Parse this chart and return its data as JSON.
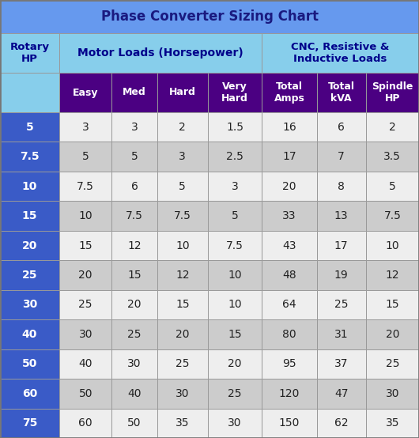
{
  "title": "Phase Converter Sizing Chart",
  "title_bg": "#6699EE",
  "header1_text": "Rotary\nHP",
  "header2_text": "Motor Loads (Horsepower)",
  "header3_text": "CNC, Resistive &\nInductive Loads",
  "header_row2": [
    "Easy",
    "Med",
    "Hard",
    "Very\nHard",
    "Total\nAmps",
    "Total\nkVA",
    "Spindle\nHP"
  ],
  "col_header_bg": "#4B0082",
  "col_header_fg": "#FFFFFF",
  "group_header_bg": "#87CEEB",
  "group_header_fg": "#00008B",
  "row_header_bg": "#3A5BC7",
  "row_header_fg": "#FFFFFF",
  "row_odd_bg": "#EEEEEE",
  "row_even_bg": "#CCCCCC",
  "row_data_fg": "#222222",
  "rows": [
    [
      "5",
      "3",
      "3",
      "2",
      "1.5",
      "16",
      "6",
      "2"
    ],
    [
      "7.5",
      "5",
      "5",
      "3",
      "2.5",
      "17",
      "7",
      "3.5"
    ],
    [
      "10",
      "7.5",
      "6",
      "5",
      "3",
      "20",
      "8",
      "5"
    ],
    [
      "15",
      "10",
      "7.5",
      "7.5",
      "5",
      "33",
      "13",
      "7.5"
    ],
    [
      "20",
      "15",
      "12",
      "10",
      "7.5",
      "43",
      "17",
      "10"
    ],
    [
      "25",
      "20",
      "15",
      "12",
      "10",
      "48",
      "19",
      "12"
    ],
    [
      "30",
      "25",
      "20",
      "15",
      "10",
      "64",
      "25",
      "15"
    ],
    [
      "40",
      "30",
      "25",
      "20",
      "15",
      "80",
      "31",
      "20"
    ],
    [
      "50",
      "40",
      "30",
      "25",
      "20",
      "95",
      "37",
      "25"
    ],
    [
      "60",
      "50",
      "40",
      "30",
      "25",
      "120",
      "47",
      "30"
    ],
    [
      "75",
      "60",
      "50",
      "35",
      "30",
      "150",
      "62",
      "35"
    ]
  ],
  "figsize": [
    5.3,
    5.54
  ],
  "dpi": 100
}
